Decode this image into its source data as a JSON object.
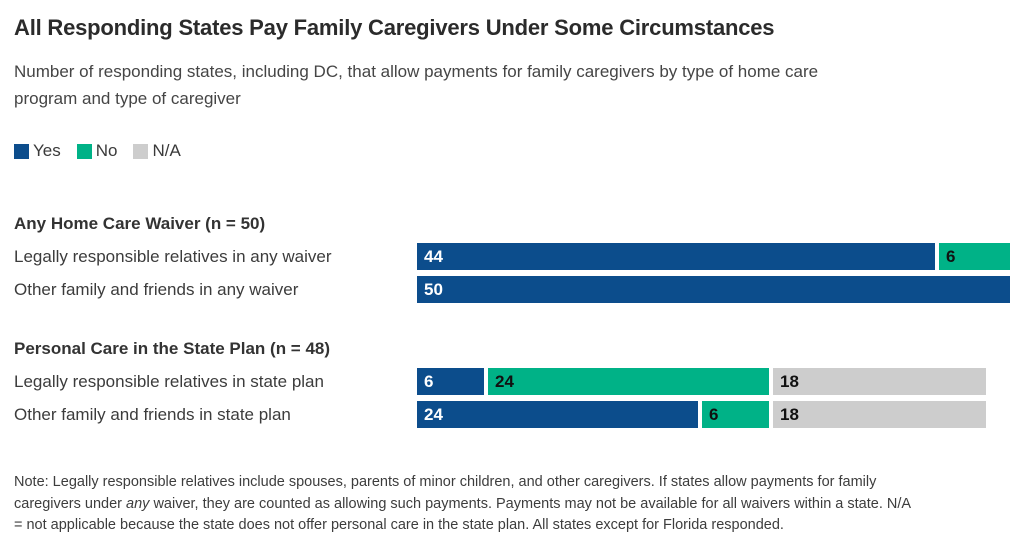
{
  "header": {
    "title": "All Responding States Pay Family Caregivers Under Some Circumstances",
    "subtitle": "Number of responding states, including DC, that allow payments for family caregivers by type of home care program and type of caregiver"
  },
  "legend": [
    {
      "label": "Yes",
      "color": "#0C4D8C"
    },
    {
      "label": "No",
      "color": "#00B287"
    },
    {
      "label": "N/A",
      "color": "#CDCDCD"
    }
  ],
  "chart_data": {
    "type": "bar",
    "orientation": "horizontal",
    "stacked": true,
    "axis_max": 50,
    "grid": false,
    "legend_position": "top-left",
    "colors": {
      "Yes": "#0C4D8C",
      "No": "#00B287",
      "N/A": "#CDCDCD"
    },
    "value_label_colors": {
      "Yes": "#ffffff",
      "No": "#111111",
      "N/A": "#111111"
    },
    "groups": [
      {
        "header": "Any Home Care Waiver (n = 50)",
        "rows": [
          {
            "label": "Legally responsible relatives in any waiver",
            "segments": [
              {
                "key": "Yes",
                "value": 44
              },
              {
                "key": "No",
                "value": 6
              }
            ]
          },
          {
            "label": "Other family and friends in any waiver",
            "segments": [
              {
                "key": "Yes",
                "value": 50
              }
            ]
          }
        ]
      },
      {
        "header": "Personal Care in the State Plan (n = 48)",
        "rows": [
          {
            "label": "Legally responsible relatives in state plan",
            "segments": [
              {
                "key": "Yes",
                "value": 6
              },
              {
                "key": "No",
                "value": 24
              },
              {
                "key": "N/A",
                "value": 18
              }
            ]
          },
          {
            "label": "Other family and friends in state plan",
            "segments": [
              {
                "key": "Yes",
                "value": 24
              },
              {
                "key": "No",
                "value": 6
              },
              {
                "key": "N/A",
                "value": 18
              }
            ]
          }
        ]
      }
    ]
  },
  "note": {
    "prefix": "Note: Legally responsible relatives include spouses, parents of minor children, and other caregivers. If states allow payments for family caregivers under ",
    "italic": "any",
    "suffix": " waiver, they are counted as allowing such payments. Payments may not be available for all waivers within a state. N/A = not applicable because the state does not offer personal care in the state plan. All states except for Florida responded."
  }
}
